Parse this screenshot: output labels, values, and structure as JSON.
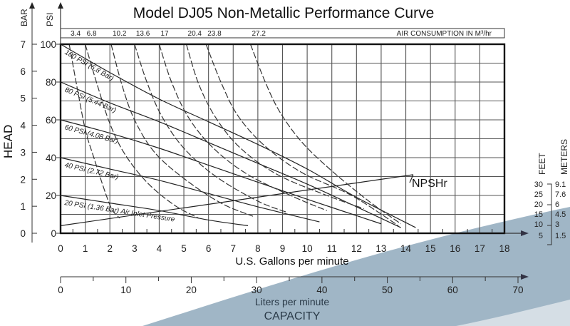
{
  "chart_data": {
    "type": "line",
    "title": "Model DJ05 Non-Metallic Performance Curve",
    "xlabel": "U.S. Gallons per minute",
    "xlabel_secondary": "Liters per minute",
    "xlabel_group": "CAPACITY",
    "ylabel": "HEAD",
    "ylabel_units_left": "BAR",
    "ylabel_units_right": "PSI",
    "xlim": [
      0,
      18
    ],
    "ylim": [
      0,
      100
    ],
    "x_ticks": [
      "0",
      "1",
      "2",
      "3",
      "4",
      "5",
      "6",
      "7",
      "8",
      "9",
      "10",
      "11",
      "12",
      "13",
      "14",
      "15",
      "16",
      "17",
      "18"
    ],
    "psi_ticks": [
      "0",
      "20",
      "40",
      "60",
      "80",
      "100"
    ],
    "bar_ticks": [
      "0",
      "1",
      "2",
      "3",
      "4",
      "5",
      "6",
      "7"
    ],
    "lpm_ticks": [
      "0",
      "10",
      "20",
      "30",
      "40",
      "50",
      "60",
      "70"
    ],
    "lpm_range": [
      0,
      70
    ],
    "grid": true,
    "air_consumption": {
      "label": "AIR CONSUMPTION IN M³/hr",
      "values": [
        "3.4",
        "6.8",
        "10.2",
        "13.6",
        "17",
        "20.4",
        "23.8",
        "27.2"
      ]
    },
    "npsh_scale": {
      "feet_label": "FEET",
      "meters_label": "METERS",
      "feet": [
        "30",
        "25",
        "20",
        "15",
        "10",
        "5"
      ],
      "meters": [
        "9.1",
        "7.6",
        "6",
        "4.5",
        "3",
        "1.5"
      ]
    },
    "series": [
      {
        "name": "100 PSI (6.8 Bar)",
        "style": "solid",
        "x": [
          0,
          2,
          4,
          6,
          8,
          10,
          12,
          14.4
        ],
        "y": [
          100,
          85,
          71,
          59,
          47,
          34,
          19,
          3
        ]
      },
      {
        "name": "80 PSI (5.44 Bar)",
        "style": "solid",
        "x": [
          0,
          2,
          4,
          6,
          8,
          10,
          12,
          13.8
        ],
        "y": [
          80,
          69,
          59,
          48,
          37,
          26,
          14,
          3
        ]
      },
      {
        "name": "60 PSI (4.08 Bar)",
        "style": "solid",
        "x": [
          0,
          2,
          4,
          6,
          8,
          10,
          13.0
        ],
        "y": [
          60,
          53,
          45,
          36,
          27,
          18,
          5
        ]
      },
      {
        "name": "40 PSI (2.72 Bar)",
        "style": "solid",
        "x": [
          0,
          2,
          4,
          6,
          8,
          10.5
        ],
        "y": [
          40,
          34,
          28,
          21,
          14,
          6
        ]
      },
      {
        "name": "20 PSI (1.36 Bar) Air Inlet Pressure",
        "style": "solid",
        "x": [
          0,
          2,
          4,
          6,
          7.6
        ],
        "y": [
          20,
          16,
          12,
          7,
          4
        ]
      },
      {
        "name": "NPSHr",
        "style": "solid",
        "x": [
          0,
          14.3
        ],
        "y": [
          4,
          31
        ]
      },
      {
        "name": "3.4 M³/hr",
        "style": "dashed",
        "x": [
          0.35,
          0.7,
          1.0,
          1.3,
          2.0,
          2.4
        ],
        "y": [
          100,
          75,
          55,
          42,
          15,
          8
        ]
      },
      {
        "name": "6.8 M³/hr",
        "style": "dashed",
        "x": [
          1.0,
          1.5,
          2.0,
          2.6,
          3.5,
          4.6,
          5.6
        ],
        "y": [
          100,
          78,
          58,
          42,
          27,
          15,
          8
        ]
      },
      {
        "name": "10.2 M³/hr",
        "style": "dashed",
        "x": [
          2.05,
          2.5,
          3.0,
          3.8,
          5.0,
          6.5,
          7.8
        ],
        "y": [
          100,
          78,
          60,
          43,
          29,
          16,
          9
        ]
      },
      {
        "name": "13.6 M³/hr",
        "style": "dashed",
        "x": [
          3.0,
          3.5,
          4.1,
          5.0,
          6.3,
          8.0,
          9.2
        ],
        "y": [
          100,
          80,
          62,
          45,
          30,
          17,
          11
        ]
      },
      {
        "name": "17 M³/hr",
        "style": "dashed",
        "x": [
          4.0,
          4.5,
          5.2,
          6.2,
          7.6,
          9.5,
          10.8
        ],
        "y": [
          100,
          80,
          61,
          45,
          31,
          19,
          12
        ]
      },
      {
        "name": "20.4 M³/hr",
        "style": "dashed",
        "x": [
          5.1,
          5.6,
          6.3,
          7.3,
          8.8,
          10.8,
          12.3
        ],
        "y": [
          100,
          79,
          61,
          45,
          31,
          20,
          13
        ]
      },
      {
        "name": "23.8 M³/hr",
        "style": "dashed",
        "x": [
          5.9,
          6.5,
          7.2,
          8.3,
          9.8,
          11.8,
          13.7
        ],
        "y": [
          100,
          80,
          62,
          46,
          32,
          20,
          4
        ]
      },
      {
        "name": "27.2 M³/hr",
        "style": "dashed",
        "x": [
          7.7,
          8.3,
          8.9,
          9.8,
          11.0,
          12.5,
          13.8
        ],
        "y": [
          100,
          80,
          64,
          48,
          33,
          17,
          5
        ]
      }
    ],
    "annotations": [
      "NPSHr"
    ]
  }
}
